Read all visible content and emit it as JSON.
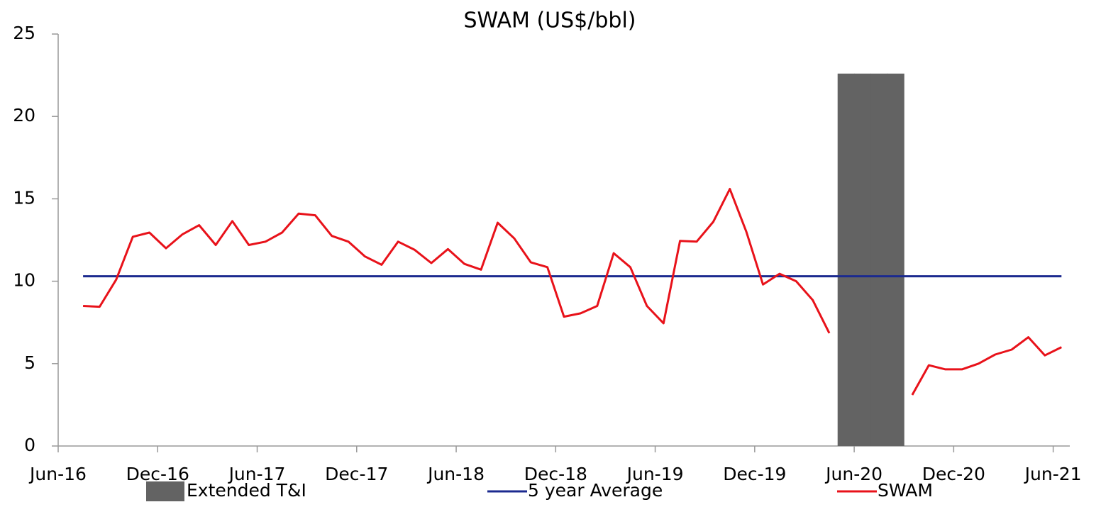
{
  "chart_data": {
    "type": "line",
    "title": "SWAM (US$/bbl)",
    "x": [
      "2016-07",
      "2016-08",
      "2016-09",
      "2016-10",
      "2016-11",
      "2016-12",
      "2017-01",
      "2017-02",
      "2017-03",
      "2017-04",
      "2017-05",
      "2017-06",
      "2017-07",
      "2017-08",
      "2017-09",
      "2017-10",
      "2017-11",
      "2017-12",
      "2018-01",
      "2018-02",
      "2018-03",
      "2018-04",
      "2018-05",
      "2018-06",
      "2018-07",
      "2018-08",
      "2018-09",
      "2018-10",
      "2018-11",
      "2018-12",
      "2019-01",
      "2019-02",
      "2019-03",
      "2019-04",
      "2019-05",
      "2019-06",
      "2019-07",
      "2019-08",
      "2019-09",
      "2019-10",
      "2019-11",
      "2019-12",
      "2020-01",
      "2020-02",
      "2020-03",
      "2020-04",
      "2020-05",
      "2020-06",
      "2020-07",
      "2020-08",
      "2020-09",
      "2020-10",
      "2020-11",
      "2020-12",
      "2021-01",
      "2021-02",
      "2021-03",
      "2021-04",
      "2021-05",
      "2021-06"
    ],
    "series": [
      {
        "name": "Extended T&I",
        "type": "bar",
        "color": "#636363",
        "values": [
          null,
          null,
          null,
          null,
          null,
          null,
          null,
          null,
          null,
          null,
          null,
          null,
          null,
          null,
          null,
          null,
          null,
          null,
          null,
          null,
          null,
          null,
          null,
          null,
          null,
          null,
          null,
          null,
          null,
          null,
          null,
          null,
          null,
          null,
          null,
          null,
          null,
          null,
          null,
          null,
          null,
          null,
          null,
          null,
          null,
          null,
          22.6,
          22.6,
          22.6,
          22.6,
          null,
          null,
          null,
          null,
          null,
          null,
          null,
          null,
          null,
          null
        ]
      },
      {
        "name": "5 year Average",
        "type": "line",
        "color": "#1b2a8f",
        "values": [
          10.3,
          10.3,
          10.3,
          10.3,
          10.3,
          10.3,
          10.3,
          10.3,
          10.3,
          10.3,
          10.3,
          10.3,
          10.3,
          10.3,
          10.3,
          10.3,
          10.3,
          10.3,
          10.3,
          10.3,
          10.3,
          10.3,
          10.3,
          10.3,
          10.3,
          10.3,
          10.3,
          10.3,
          10.3,
          10.3,
          10.3,
          10.3,
          10.3,
          10.3,
          10.3,
          10.3,
          10.3,
          10.3,
          10.3,
          10.3,
          10.3,
          10.3,
          10.3,
          10.3,
          10.3,
          10.3,
          10.3,
          10.3,
          10.3,
          10.3,
          10.3,
          10.3,
          10.3,
          10.3,
          10.3,
          10.3,
          10.3,
          10.3,
          10.3,
          10.3
        ]
      },
      {
        "name": "SWAM",
        "type": "line",
        "color": "#e8121a",
        "values": [
          8.5,
          8.45,
          10.1,
          12.7,
          12.95,
          12.0,
          12.85,
          13.4,
          12.2,
          13.65,
          12.2,
          12.4,
          12.95,
          14.1,
          14.0,
          12.75,
          12.4,
          11.5,
          11.0,
          12.4,
          11.9,
          11.1,
          11.95,
          11.05,
          10.7,
          13.55,
          12.6,
          11.15,
          10.85,
          7.85,
          8.05,
          8.5,
          11.7,
          10.85,
          8.5,
          7.45,
          12.45,
          12.4,
          13.6,
          15.6,
          13.0,
          9.8,
          10.45,
          10.0,
          8.85,
          6.85,
          null,
          null,
          null,
          null,
          3.1,
          4.9,
          4.65,
          4.65,
          5.0,
          5.55,
          5.85,
          6.6,
          5.5,
          6.0
        ]
      }
    ],
    "xlim": [
      "2016-06",
      "2021-07"
    ],
    "xticks": [
      {
        "value": "2016-06",
        "label": "Jun-16"
      },
      {
        "value": "2016-12",
        "label": "Dec-16"
      },
      {
        "value": "2017-06",
        "label": "Jun-17"
      },
      {
        "value": "2017-12",
        "label": "Dec-17"
      },
      {
        "value": "2018-06",
        "label": "Jun-18"
      },
      {
        "value": "2018-12",
        "label": "Dec-18"
      },
      {
        "value": "2019-06",
        "label": "Jun-19"
      },
      {
        "value": "2019-12",
        "label": "Dec-19"
      },
      {
        "value": "2020-06",
        "label": "Jun-20"
      },
      {
        "value": "2020-12",
        "label": "Dec-20"
      },
      {
        "value": "2021-06",
        "label": "Jun-21"
      }
    ],
    "ylim": [
      0,
      25
    ],
    "yticks": [
      0,
      5,
      10,
      15,
      20,
      25
    ],
    "grid": false,
    "legend": "bottom"
  }
}
